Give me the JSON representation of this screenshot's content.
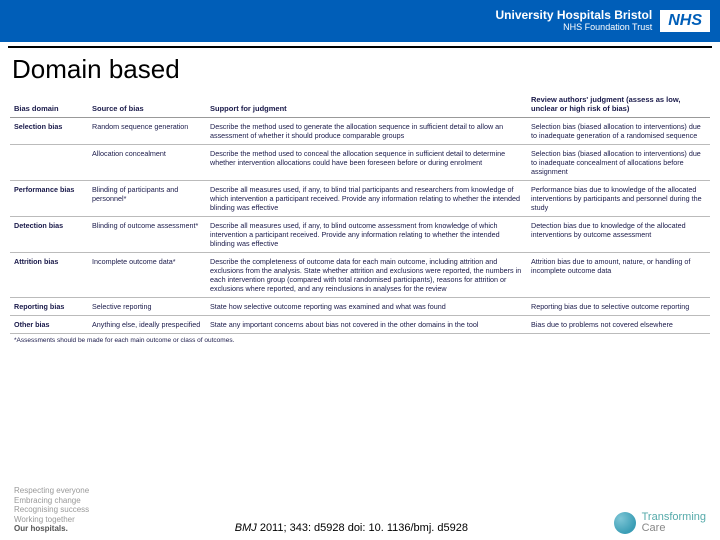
{
  "header": {
    "org_main": "University Hospitals Bristol",
    "org_sub": "NHS Foundation Trust",
    "nhs_logo": "NHS"
  },
  "title": "Domain based",
  "table": {
    "columns": [
      "Bias domain",
      "Source of bias",
      "Support for judgment",
      "Review authors' judgment (assess as low, unclear or high risk of bias)"
    ],
    "rows": [
      {
        "d": "Selection bias",
        "s": "Random sequence generation",
        "sup": "Describe the method used to generate the allocation sequence in sufficient detail to allow an assessment of whether it should produce comparable groups",
        "j": "Selection bias (biased allocation to interventions) due to inadequate generation of a randomised sequence",
        "sepAfter": false
      },
      {
        "d": "",
        "s": "Allocation concealment",
        "sup": "Describe the method used to conceal the allocation sequence in sufficient detail to determine whether intervention allocations could have been foreseen before or during enrolment",
        "j": "Selection bias (biased allocation to interventions) due to inadequate concealment of allocations before assignment",
        "sepAfter": true
      },
      {
        "d": "Performance bias",
        "s": "Blinding of participants and personnel*",
        "sup": "Describe all measures used, if any, to blind trial participants and researchers from knowledge of which intervention a participant received. Provide any information relating to whether the intended blinding was effective",
        "j": "Performance bias due to knowledge of the allocated interventions by participants and personnel during the study",
        "sepAfter": true
      },
      {
        "d": "Detection bias",
        "s": "Blinding of outcome assessment*",
        "sup": "Describe all measures used, if any, to blind outcome assessment from knowledge of which intervention a participant received. Provide any information relating to whether the intended blinding was effective",
        "j": "Detection bias due to knowledge of the allocated interventions by outcome assessment",
        "sepAfter": true
      },
      {
        "d": "Attrition bias",
        "s": "Incomplete outcome data*",
        "sup": "Describe the completeness of outcome data for each main outcome, including attrition and exclusions from the analysis. State whether attrition and exclusions were reported, the numbers in each intervention group (compared with total randomised participants), reasons for attrition or exclusions where reported, and any reinclusions in analyses for the review",
        "j": "Attrition bias due to amount, nature, or handling of incomplete outcome data",
        "sepAfter": true
      },
      {
        "d": "Reporting bias",
        "s": "Selective reporting",
        "sup": "State how selective outcome reporting was examined and what was found",
        "j": "Reporting bias due to selective outcome reporting",
        "sepAfter": true
      },
      {
        "d": "Other bias",
        "s": "Anything else, ideally prespecified",
        "sup": "State any important concerns about bias not covered in the other domains in the tool",
        "j": "Bias due to problems not covered elsewhere",
        "sepAfter": true
      }
    ],
    "footnote": "*Assessments should be made for each main outcome or class of outcomes."
  },
  "footer": {
    "values": [
      "Respecting everyone",
      "Embracing change",
      "Recognising success",
      "Working together",
      "Our hospitals."
    ],
    "citation_prefix_italic": "BMJ",
    "citation_rest": " 2011; 343: d5928 doi: 10. 1136/bmj. d5928",
    "tcare_line1": "Transforming",
    "tcare_line2": "Care"
  },
  "colors": {
    "nhs_blue": "#005eb8",
    "text_dark": "#1a1a4a",
    "grey": "#999"
  }
}
